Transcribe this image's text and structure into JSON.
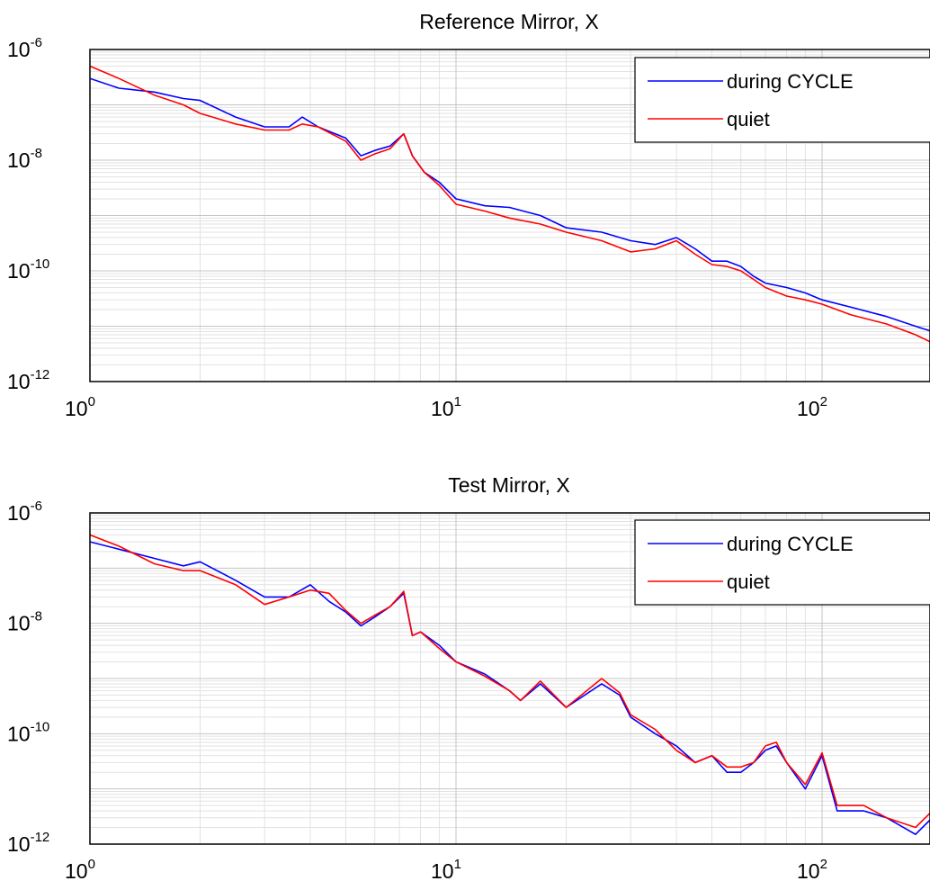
{
  "chart_data": [
    {
      "type": "line",
      "title": "Reference Mirror, X",
      "xscale": "log",
      "yscale": "log",
      "xlim": [
        1,
        200
      ],
      "ylim": [
        1e-12,
        1e-06
      ],
      "xticks": [
        {
          "base": "10",
          "exp": "0"
        },
        {
          "base": "10",
          "exp": "1"
        },
        {
          "base": "10",
          "exp": "2"
        }
      ],
      "yticks": [
        {
          "base": "10",
          "exp": "-6"
        },
        {
          "base": "10",
          "exp": "-8"
        },
        {
          "base": "10",
          "exp": "-10"
        },
        {
          "base": "10",
          "exp": "-12"
        }
      ],
      "grid": true,
      "legend_position": "top-right",
      "series": [
        {
          "name": "during CYCLE",
          "color": "#0000ff",
          "x": [
            1,
            1.2,
            1.5,
            1.8,
            2,
            2.5,
            3,
            3.5,
            3.8,
            4.2,
            5,
            5.5,
            6,
            6.6,
            7.2,
            7.6,
            8.2,
            9,
            10,
            12,
            14,
            17,
            20,
            25,
            30,
            35,
            40,
            45,
            50,
            55,
            60,
            65,
            70,
            80,
            90,
            100,
            120,
            150,
            180,
            200
          ],
          "y": [
            3e-07,
            2e-07,
            1.7e-07,
            1.3e-07,
            1.2e-07,
            6e-08,
            4e-08,
            4e-08,
            6e-08,
            4e-08,
            2.5e-08,
            1.2e-08,
            1.5e-08,
            1.8e-08,
            3e-08,
            1.2e-08,
            6e-09,
            4e-09,
            2e-09,
            1.5e-09,
            1.4e-09,
            1e-09,
            6e-10,
            5e-10,
            3.5e-10,
            3e-10,
            4e-10,
            2.5e-10,
            1.5e-10,
            1.5e-10,
            1.2e-10,
            8e-11,
            6e-11,
            5e-11,
            4e-11,
            3e-11,
            2.2e-11,
            1.5e-11,
            1e-11,
            8e-12
          ]
        },
        {
          "name": "quiet",
          "color": "#ff0000",
          "x": [
            1,
            1.2,
            1.5,
            1.8,
            2,
            2.5,
            3,
            3.5,
            3.8,
            4.2,
            5,
            5.5,
            6,
            6.6,
            7.2,
            7.6,
            8.2,
            9,
            10,
            12,
            14,
            17,
            20,
            25,
            30,
            35,
            40,
            45,
            50,
            55,
            60,
            65,
            70,
            80,
            90,
            100,
            120,
            150,
            180,
            200
          ],
          "y": [
            5e-07,
            3e-07,
            1.5e-07,
            1e-07,
            7e-08,
            4.5e-08,
            3.5e-08,
            3.5e-08,
            4.5e-08,
            4e-08,
            2.2e-08,
            1e-08,
            1.3e-08,
            1.6e-08,
            3e-08,
            1.2e-08,
            6e-09,
            3.5e-09,
            1.6e-09,
            1.2e-09,
            9e-10,
            7e-10,
            5e-10,
            3.5e-10,
            2.2e-10,
            2.5e-10,
            3.5e-10,
            2e-10,
            1.3e-10,
            1.2e-10,
            1e-10,
            7e-11,
            5e-11,
            3.5e-11,
            3e-11,
            2.5e-11,
            1.6e-11,
            1.1e-11,
            7e-12,
            5e-12
          ]
        }
      ]
    },
    {
      "type": "line",
      "title": "Test Mirror, X",
      "xscale": "log",
      "yscale": "log",
      "xlim": [
        1,
        200
      ],
      "ylim": [
        1e-12,
        1e-06
      ],
      "xticks": [
        {
          "base": "10",
          "exp": "0"
        },
        {
          "base": "10",
          "exp": "1"
        },
        {
          "base": "10",
          "exp": "2"
        }
      ],
      "yticks": [
        {
          "base": "10",
          "exp": "-6"
        },
        {
          "base": "10",
          "exp": "-8"
        },
        {
          "base": "10",
          "exp": "-10"
        },
        {
          "base": "10",
          "exp": "-12"
        }
      ],
      "grid": true,
      "legend_position": "top-right",
      "series": [
        {
          "name": "during CYCLE",
          "color": "#0000ff",
          "x": [
            1,
            1.2,
            1.5,
            1.8,
            2,
            2.5,
            3,
            3.5,
            4,
            4.5,
            5,
            5.5,
            6,
            6.6,
            7.2,
            7.6,
            8,
            9,
            10,
            12,
            14,
            15,
            17,
            20,
            25,
            28,
            30,
            35,
            40,
            45,
            50,
            55,
            60,
            65,
            70,
            75,
            80,
            90,
            100,
            110,
            130,
            150,
            180,
            200
          ],
          "y": [
            3e-07,
            2.2e-07,
            1.5e-07,
            1.1e-07,
            1.3e-07,
            6e-08,
            3e-08,
            3e-08,
            5e-08,
            2.5e-08,
            1.6e-08,
            9e-09,
            1.3e-08,
            2e-08,
            3.5e-08,
            6e-09,
            7e-09,
            4e-09,
            2e-09,
            1.2e-09,
            6e-10,
            4e-10,
            8e-10,
            3e-10,
            8e-10,
            5e-10,
            2e-10,
            1e-10,
            6e-11,
            3e-11,
            4e-11,
            2e-11,
            2e-11,
            3e-11,
            5e-11,
            6e-11,
            3e-11,
            1e-11,
            4e-11,
            4e-12,
            4e-12,
            3e-12,
            1.5e-12,
            3e-12
          ]
        },
        {
          "name": "quiet",
          "color": "#ff0000",
          "x": [
            1,
            1.2,
            1.5,
            1.8,
            2,
            2.5,
            3,
            3.5,
            4,
            4.5,
            5,
            5.5,
            6,
            6.6,
            7.2,
            7.6,
            8,
            9,
            10,
            12,
            14,
            15,
            17,
            20,
            25,
            28,
            30,
            35,
            40,
            45,
            50,
            55,
            60,
            65,
            70,
            75,
            80,
            90,
            100,
            110,
            130,
            150,
            180,
            200
          ],
          "y": [
            4e-07,
            2.5e-07,
            1.2e-07,
            9e-08,
            9e-08,
            5e-08,
            2.2e-08,
            3e-08,
            4e-08,
            3.5e-08,
            1.7e-08,
            1e-08,
            1.4e-08,
            2e-08,
            3.8e-08,
            6e-09,
            7e-09,
            3.5e-09,
            2e-09,
            1.1e-09,
            6e-10,
            4e-10,
            9e-10,
            3e-10,
            1e-09,
            5.5e-10,
            2.2e-10,
            1.2e-10,
            5e-11,
            3e-11,
            4e-11,
            2.5e-11,
            2.5e-11,
            3e-11,
            6e-11,
            7e-11,
            3e-11,
            1.2e-11,
            4.5e-11,
            5e-12,
            5e-12,
            3e-12,
            2e-12,
            4e-12
          ]
        }
      ]
    }
  ]
}
